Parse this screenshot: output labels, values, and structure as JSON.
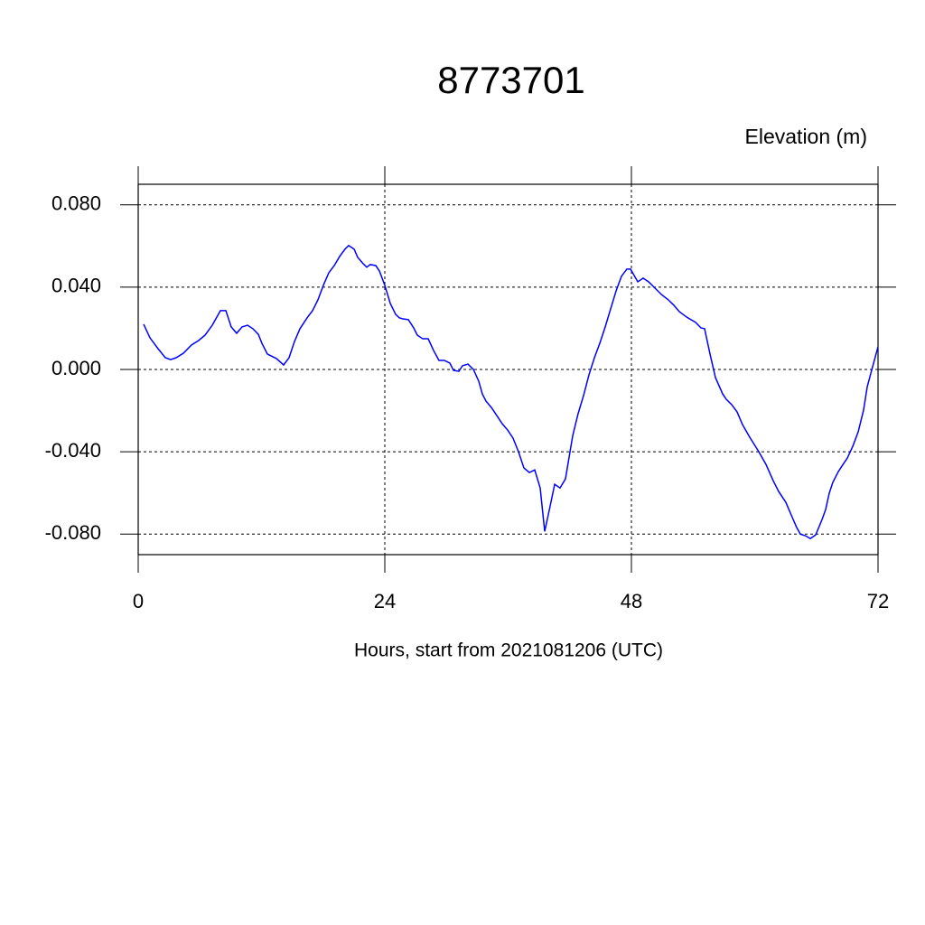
{
  "chart_data": {
    "type": "line",
    "title": "8773701",
    "ylabel": "Elevation (m)",
    "xlabel": "Hours, start from 2021081206 (UTC)",
    "xlim": [
      0,
      72
    ],
    "xticks": [
      0,
      24,
      48,
      72
    ],
    "ylim": [
      -0.09,
      0.09
    ],
    "yticks": [
      {
        "value": -0.08,
        "label": "-0.080"
      },
      {
        "value": -0.04,
        "label": "-0.040"
      },
      {
        "value": 0,
        "label": "0.000"
      },
      {
        "value": 0.04,
        "label": "0.040"
      },
      {
        "value": 0.08,
        "label": "0.080"
      }
    ],
    "grid": true,
    "series": [
      {
        "color": "#0000ff",
        "x": [
          0.53,
          1.14,
          1.93,
          2.64,
          3.16,
          3.69,
          4.4,
          5.19,
          5.89,
          6.51,
          7.21,
          8.0,
          8.53,
          9.05,
          9.58,
          10.11,
          10.64,
          11.16,
          11.69,
          12.04,
          12.57,
          13.45,
          14.15,
          14.68,
          15.21,
          15.74,
          16.44,
          16.97,
          17.49,
          18.02,
          18.55,
          19.08,
          19.6,
          20.13,
          20.48,
          21.01,
          21.36,
          21.89,
          22.24,
          22.59,
          23.12,
          23.47,
          24.0,
          24.53,
          25.05,
          25.41,
          25.76,
          26.29,
          26.81,
          27.16,
          27.69,
          28.22,
          28.75,
          29.27,
          29.8,
          30.33,
          30.68,
          31.21,
          31.56,
          32.09,
          32.62,
          33.14,
          33.49,
          33.85,
          34.37,
          34.9,
          35.43,
          35.96,
          36.48,
          37.01,
          37.54,
          38.07,
          38.59,
          39.12,
          39.56,
          40.09,
          40.53,
          41.05,
          41.58,
          42.29,
          42.81,
          43.34,
          43.87,
          44.4,
          44.92,
          45.45,
          45.98,
          46.51,
          47.03,
          47.56,
          47.91,
          48.62,
          49.14,
          49.67,
          50.2,
          50.9,
          51.6,
          52.13,
          52.66,
          53.36,
          54.24,
          54.77,
          55.12,
          55.65,
          56.18,
          56.88,
          57.23,
          57.76,
          58.29,
          58.81,
          59.52,
          60.4,
          61.1,
          61.8,
          62.33,
          63.03,
          63.56,
          64.09,
          64.44,
          64.97,
          65.41,
          65.93,
          66.55,
          66.9,
          67.25,
          67.6,
          68.13,
          68.48,
          69.01,
          69.54,
          70.07,
          70.59,
          70.95,
          71.47,
          72.0
        ],
        "values": [
          0.022,
          0.0154,
          0.0101,
          0.0057,
          0.0048,
          0.0057,
          0.0079,
          0.0119,
          0.0141,
          0.0167,
          0.0215,
          0.0286,
          0.0286,
          0.0207,
          0.0176,
          0.0207,
          0.0215,
          0.0198,
          0.0171,
          0.0127,
          0.0075,
          0.0053,
          0.0022,
          0.0057,
          0.0136,
          0.0198,
          0.0251,
          0.0286,
          0.0338,
          0.0409,
          0.047,
          0.0505,
          0.0549,
          0.0585,
          0.0602,
          0.0585,
          0.0545,
          0.0514,
          0.0497,
          0.051,
          0.0505,
          0.0479,
          0.0409,
          0.0321,
          0.0268,
          0.0251,
          0.0246,
          0.0242,
          0.0202,
          0.0167,
          0.0149,
          0.0149,
          0.0092,
          0.0044,
          0.0044,
          0.0031,
          -0.0004,
          -0.0009,
          0.0018,
          0.0026,
          0.0,
          -0.0057,
          -0.0119,
          -0.0154,
          -0.0185,
          -0.0224,
          -0.0264,
          -0.0295,
          -0.0334,
          -0.04,
          -0.0479,
          -0.0501,
          -0.0488,
          -0.0576,
          -0.0787,
          -0.0664,
          -0.0558,
          -0.0576,
          -0.0532,
          -0.0321,
          -0.0215,
          -0.0127,
          -0.0026,
          0.0057,
          0.0127,
          0.0207,
          0.0295,
          0.0382,
          0.0453,
          0.0488,
          0.0488,
          0.0426,
          0.0444,
          0.0426,
          0.04,
          0.0365,
          0.0338,
          0.0312,
          0.0281,
          0.0255,
          0.0229,
          0.0202,
          0.0198,
          0.0075,
          -0.004,
          -0.0119,
          -0.0145,
          -0.0171,
          -0.0207,
          -0.0268,
          -0.033,
          -0.04,
          -0.0462,
          -0.0541,
          -0.0593,
          -0.0646,
          -0.0708,
          -0.0769,
          -0.08,
          -0.0809,
          -0.0822,
          -0.0804,
          -0.073,
          -0.0681,
          -0.0602,
          -0.0549,
          -0.0497,
          -0.047,
          -0.0431,
          -0.0374,
          -0.0303,
          -0.0198,
          -0.0084,
          0.0013,
          0.011
        ]
      }
    ]
  }
}
